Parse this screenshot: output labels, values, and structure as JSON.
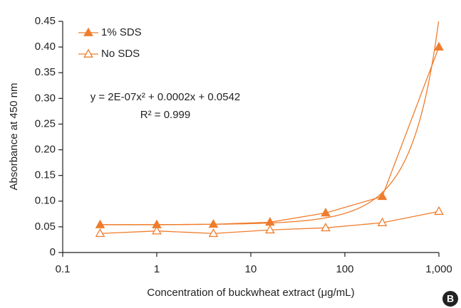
{
  "chart_data": {
    "type": "line",
    "x_label": "Concentration of buckwheat extract (μg/mL)",
    "y_label": "Absorbance at 450 nm",
    "xscale": "log",
    "x": [
      0.25,
      1,
      4,
      16,
      62.5,
      250,
      1000
    ],
    "series": [
      {
        "name": "1% SDS",
        "color": "#ef7d2d",
        "marker": "filled-triangle",
        "values": [
          0.054,
          0.054,
          0.055,
          0.059,
          0.077,
          0.109,
          0.4
        ]
      },
      {
        "name": "No SDS",
        "color": "#ef7d2d",
        "marker": "open-triangle",
        "values": [
          0.037,
          0.042,
          0.037,
          0.044,
          0.048,
          0.058,
          0.08
        ]
      }
    ],
    "trendline": {
      "equation": "y = 2E-07x² + 0.0002x + 0.0542",
      "r_squared": "R² = 0.999",
      "coefficients": [
        2e-07,
        0.0002,
        0.0542
      ],
      "color": "#ef7d2d"
    },
    "xlim": [
      0.1,
      1000
    ],
    "xticks": [
      0.1,
      1,
      10,
      100,
      {
        "value": 1000,
        "label": "1,000"
      }
    ],
    "ylim": [
      0,
      0.45
    ],
    "yticks": [
      0,
      0.05,
      {
        "value": 0.1,
        "label": "0.10"
      },
      0.15,
      {
        "value": 0.2,
        "label": "0.20"
      },
      0.25,
      {
        "value": 0.3,
        "label": "0.30"
      },
      0.35,
      {
        "value": 0.4,
        "label": "0.40"
      },
      0.45
    ],
    "legend": "top-left",
    "grid": false,
    "badge": "B"
  }
}
